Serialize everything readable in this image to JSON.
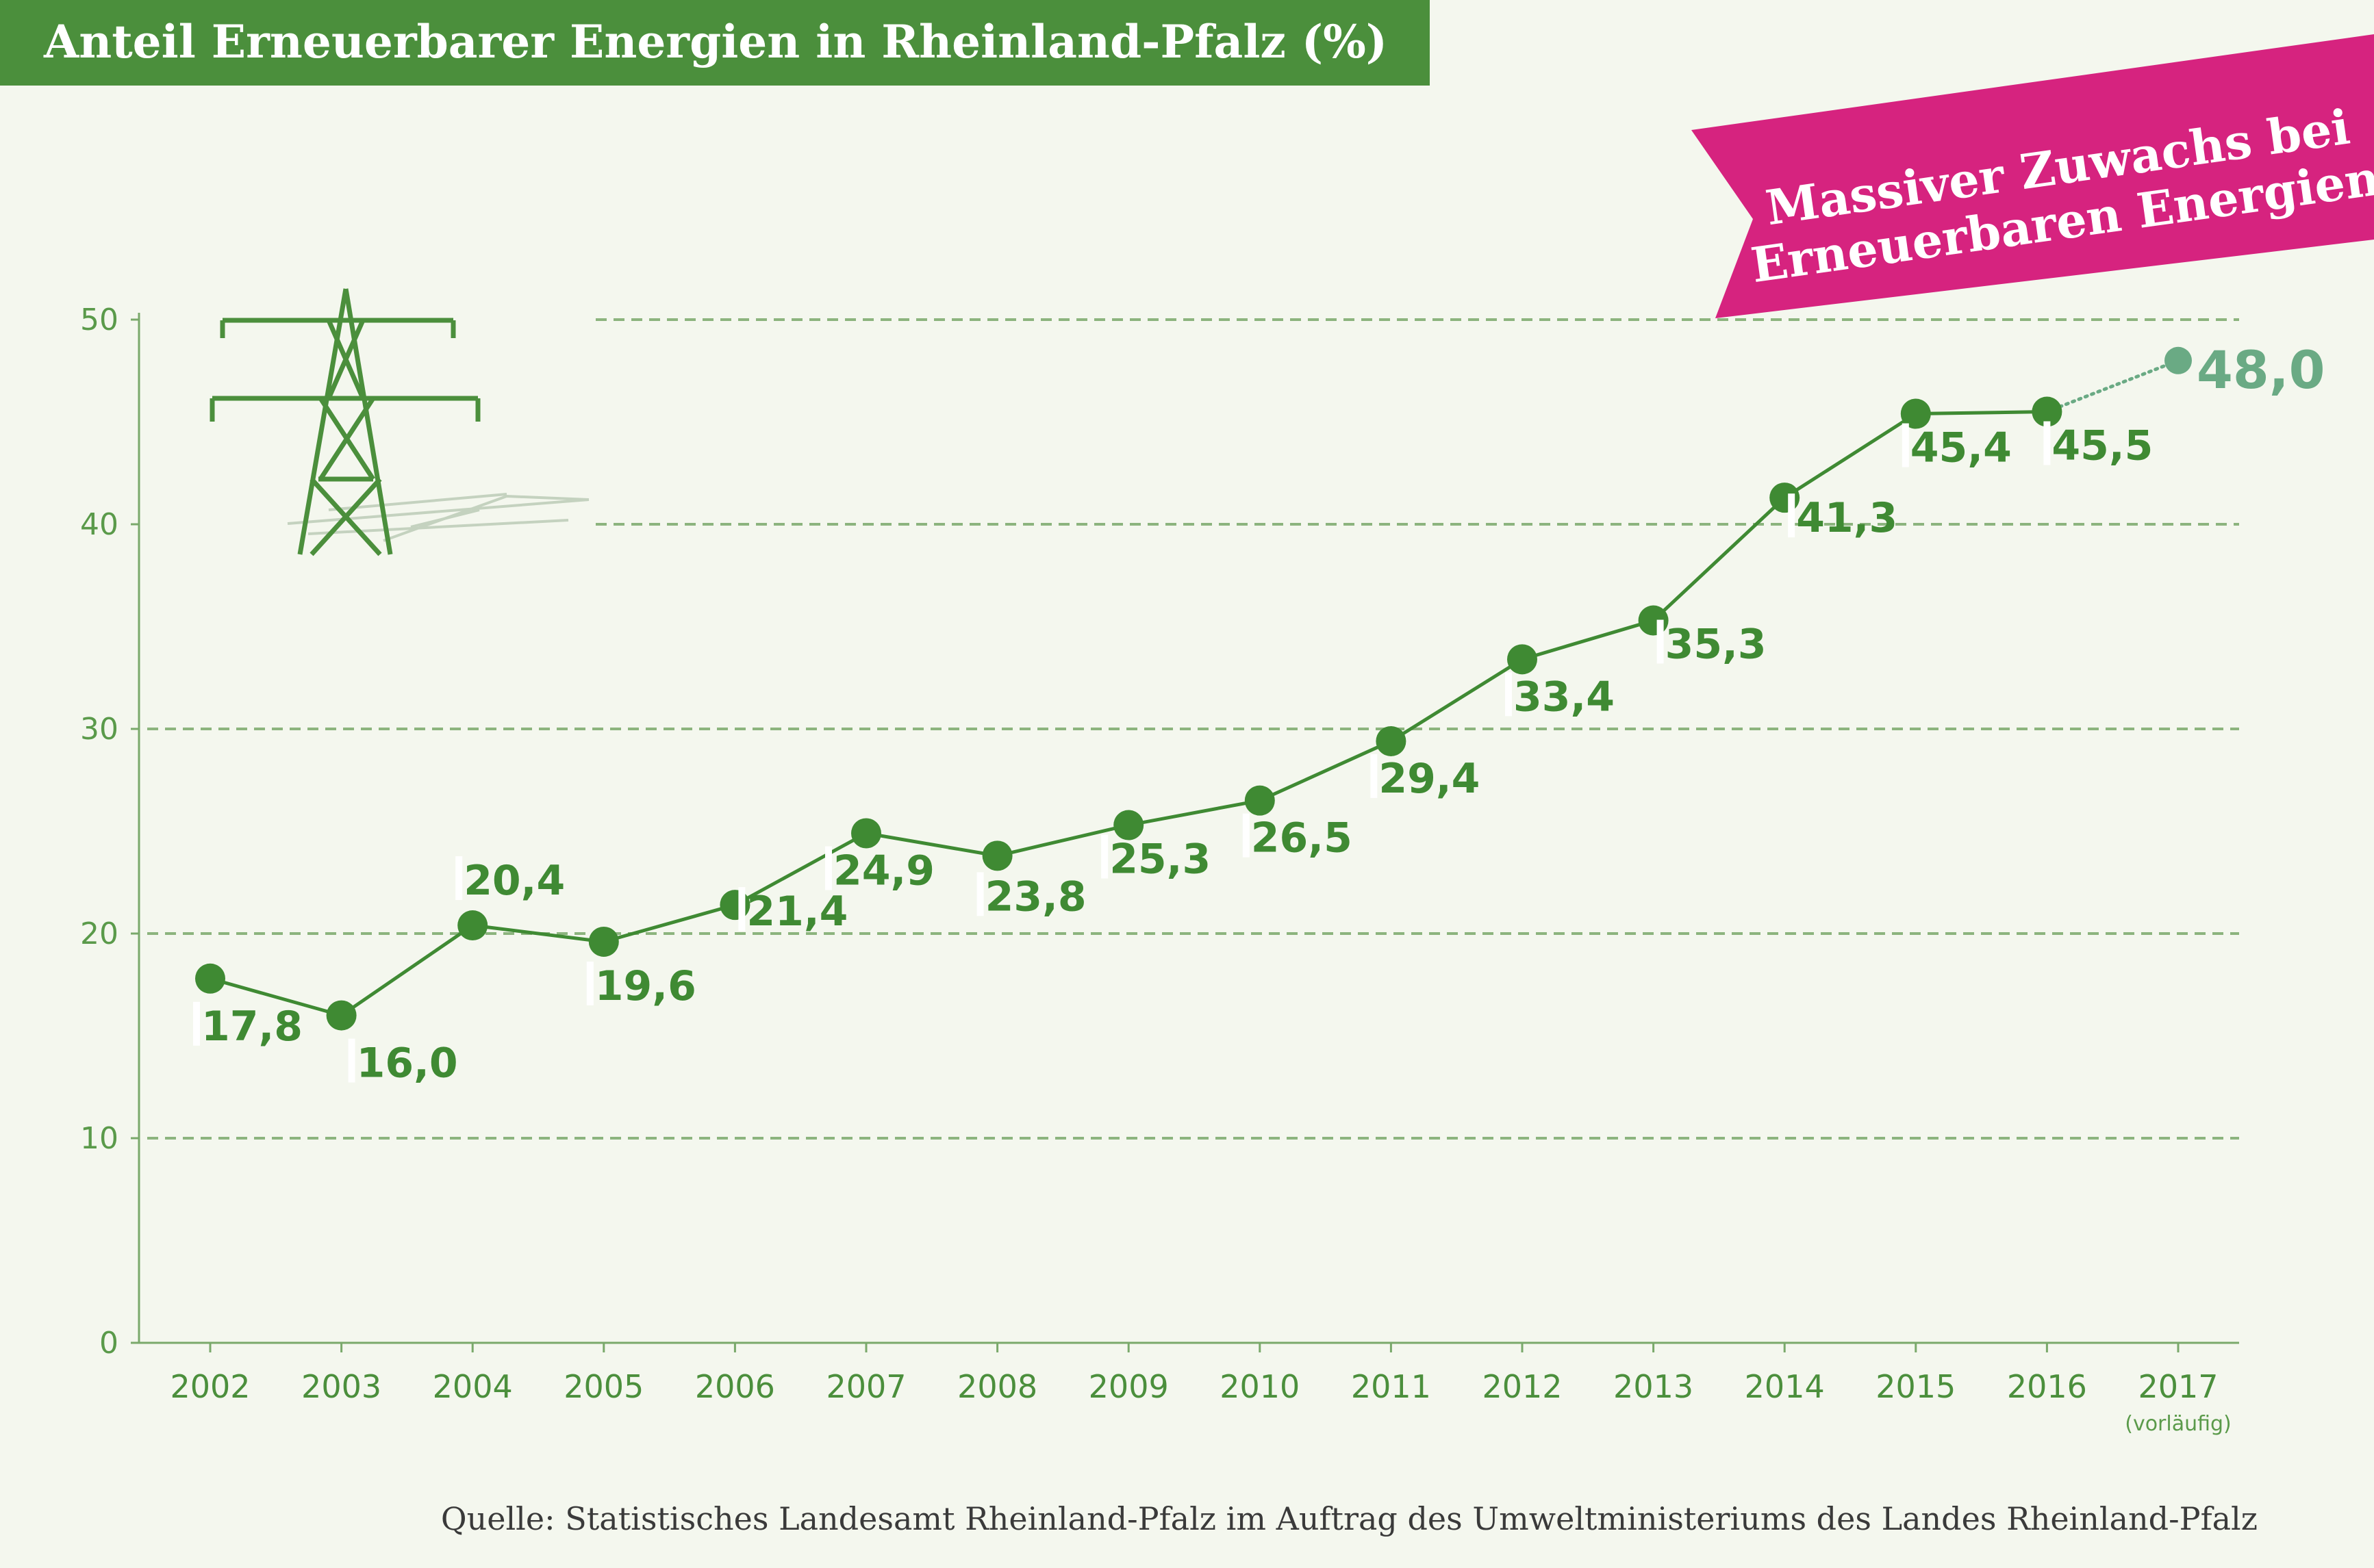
{
  "colors": {
    "background": "#f4f7ee",
    "title_bar": "#4b8f3c",
    "banner": "#d6237f",
    "line": "#3f8a33",
    "provisional": "#6aaa84",
    "grid": "#7aa96b"
  },
  "banner": {
    "line1": "Massiver Zuwachs bei",
    "line2": "Erneuerbaren Energien"
  },
  "source": "Quelle: Statistisches Landesamt Rheinland-Pfalz im Auftrag des Umweltministeriums des Landes Rheinland-Pfalz",
  "icon": "power-pylon-icon",
  "chart_data": {
    "type": "line",
    "title": "Anteil Erneuerbarer Energien in Rheinland-Pfalz (%)",
    "xlabel": "",
    "ylabel": "",
    "ylim": [
      0,
      50
    ],
    "yticks": [
      0,
      10,
      20,
      30,
      40,
      50
    ],
    "grid": true,
    "categories": [
      "2002",
      "2003",
      "2004",
      "2005",
      "2006",
      "2007",
      "2008",
      "2009",
      "2010",
      "2011",
      "2012",
      "2013",
      "2014",
      "2015",
      "2016",
      "2017"
    ],
    "category_notes": [
      "",
      "",
      "",
      "",
      "",
      "",
      "",
      "",
      "",
      "",
      "",
      "",
      "",
      "",
      "",
      "(vorläufig)"
    ],
    "values": [
      17.8,
      16.0,
      20.4,
      19.6,
      21.4,
      24.9,
      23.8,
      25.3,
      26.5,
      29.4,
      33.4,
      35.3,
      41.3,
      45.4,
      45.5,
      48.0
    ],
    "labels": [
      "17,8",
      "16,0",
      "20,4",
      "19,6",
      "21,4",
      "24,9",
      "23,8",
      "25,3",
      "26,5",
      "29,4",
      "33,4",
      "35,3",
      "41,3",
      "45,4",
      "45,5",
      "48,0"
    ],
    "provisional_index": 15
  }
}
